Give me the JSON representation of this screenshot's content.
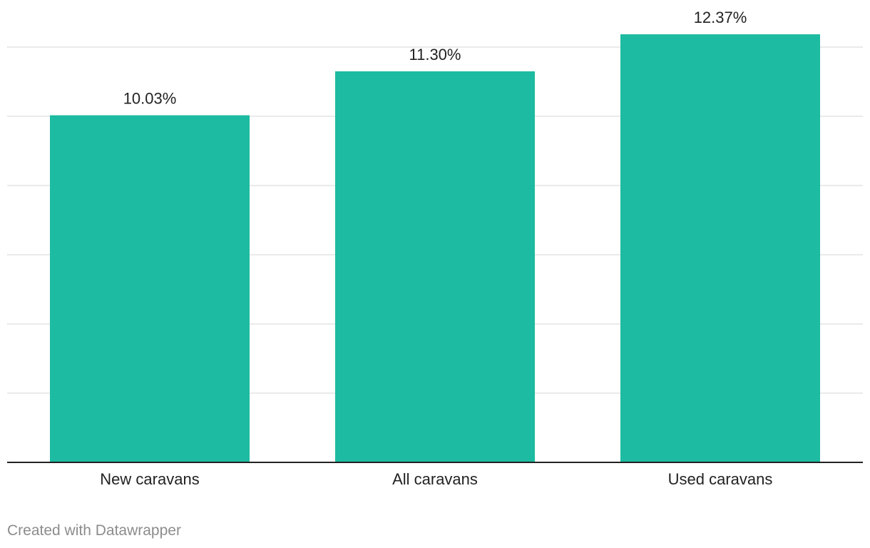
{
  "chart_data": {
    "type": "bar",
    "categories": [
      "New caravans",
      "All caravans",
      "Used caravans"
    ],
    "values": [
      10.03,
      11.3,
      12.37
    ],
    "value_labels": [
      "10.03%",
      "11.30%",
      "12.37%"
    ],
    "title": "",
    "xlabel": "",
    "ylabel": "",
    "ylim": [
      0,
      12
    ],
    "grid": true,
    "gridlines_at": [
      2,
      4,
      6,
      8,
      10,
      12
    ],
    "bar_color": "#1dbba1"
  },
  "footer": {
    "credit": "Created with Datawrapper"
  }
}
